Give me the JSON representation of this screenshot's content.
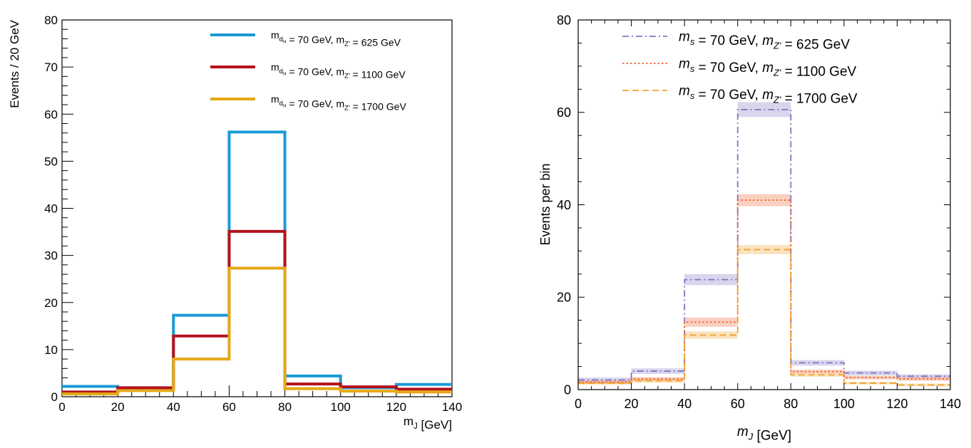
{
  "chart_data": [
    {
      "type": "step",
      "xlabel": "m_J [GeV]",
      "ylabel": "Events / 20 GeV",
      "xlim": [
        0,
        140
      ],
      "ylim": [
        0,
        80
      ],
      "x_ticks": [
        0,
        20,
        40,
        60,
        80,
        100,
        120,
        140
      ],
      "y_ticks": [
        0,
        10,
        20,
        30,
        40,
        50,
        60,
        70,
        80
      ],
      "bin_edges": [
        0,
        20,
        40,
        60,
        80,
        100,
        120,
        140
      ],
      "legend_position": "top-right",
      "series": [
        {
          "name": "m_dH = 70 GeV, m_Z' = 625 GeV",
          "color": "#1b9ad6",
          "values": [
            2.2,
            1.6,
            17.3,
            56.2,
            4.4,
            1.9,
            2.6
          ]
        },
        {
          "name": "m_dH = 70 GeV, m_Z' = 1100 GeV",
          "color": "#b3121b",
          "values": [
            1.0,
            1.9,
            12.9,
            35.1,
            2.7,
            2.1,
            1.6
          ]
        },
        {
          "name": "m_dH = 70 GeV, m_Z' = 1700 GeV",
          "color": "#e6a817",
          "values": [
            0.6,
            1.3,
            8.0,
            27.3,
            1.7,
            1.2,
            1.0
          ]
        }
      ]
    },
    {
      "type": "step",
      "xlabel": "m_J [GeV]",
      "ylabel": "Events per bin",
      "xlim": [
        0,
        140
      ],
      "ylim": [
        0,
        80
      ],
      "x_ticks": [
        0,
        20,
        40,
        60,
        80,
        100,
        120,
        140
      ],
      "y_ticks": [
        0,
        20,
        40,
        60,
        80
      ],
      "bin_edges": [
        0,
        20,
        40,
        60,
        80,
        100,
        120,
        140
      ],
      "legend_position": "top",
      "series": [
        {
          "name": "m_s = 70 GeV, m_Z' = 625 GeV",
          "color": "#8275c0",
          "dash": "dashdot",
          "values": [
            2.1,
            4.0,
            23.8,
            60.6,
            5.8,
            3.6,
            2.9
          ],
          "band": [
            0.5,
            0.6,
            1.2,
            1.6,
            0.6,
            0.5,
            0.4
          ]
        },
        {
          "name": "m_s = 70 GeV, m_Z' = 1100 GeV",
          "color": "#f0622f",
          "dash": "dotted",
          "values": [
            1.6,
            2.3,
            14.6,
            41.0,
            3.9,
            2.6,
            2.3
          ],
          "band": [
            0.4,
            0.4,
            1.0,
            1.3,
            0.4,
            0.4,
            0.4
          ]
        },
        {
          "name": "m_s = 70 GeV, m_Z' = 1700 GeV",
          "color": "#f0a22f",
          "dash": "dashed",
          "values": [
            1.4,
            1.9,
            11.8,
            30.3,
            3.2,
            1.4,
            1.0
          ],
          "band": [
            0.3,
            0.4,
            0.8,
            1.0,
            0.4,
            0.3,
            0.3
          ]
        }
      ]
    }
  ]
}
